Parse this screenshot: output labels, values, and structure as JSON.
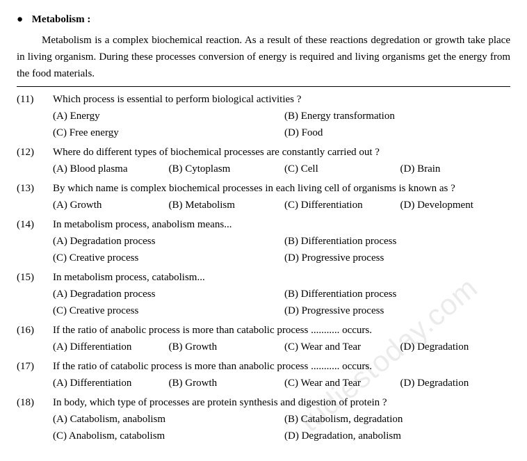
{
  "header": {
    "bullet": "●",
    "title": "Metabolism  :"
  },
  "intro": "Metabolism is a complex biochemical reaction. As a result of these reactions degredation or growth take place in living organism. During these processes conversion of energy is required and living organisms get the energy from the food materials.",
  "watermark": "tudiestoday.com",
  "questions": [
    {
      "num": "(11)",
      "text": "Which process is essential to perform biological activities ?",
      "layout": "2col",
      "opts": {
        "A": "(A) Energy",
        "B": "(B) Energy transformation",
        "C": "(C) Free energy",
        "D": "(D) Food"
      }
    },
    {
      "num": "(12)",
      "text": "Where do different types of biochemical processes are constantly carried out ?",
      "layout": "4col",
      "opts": {
        "A": "(A) Blood plasma",
        "B": "(B) Cytoplasm",
        "C": "(C) Cell",
        "D": "(D) Brain"
      }
    },
    {
      "num": "(13)",
      "text": "By which name is complex biochemical processes in each living cell of organisms is known as ?",
      "layout": "4col",
      "opts": {
        "A": "(A) Growth",
        "B": "(B) Metabolism",
        "C": "(C) Differentiation",
        "D": "(D) Development"
      }
    },
    {
      "num": "(14)",
      "text": "In metabolism process, anabolism means...",
      "layout": "2col",
      "opts": {
        "A": "(A) Degradation process",
        "B": "(B) Differentiation process",
        "C": "(C) Creative process",
        "D": "(D) Progressive process"
      }
    },
    {
      "num": "(15)",
      "text": "In metabolism process, catabolism...",
      "layout": "2col",
      "opts": {
        "A": "(A) Degradation process",
        "B": "(B) Differentiation process",
        "C": "(C) Creative process",
        "D": "(D) Progressive process"
      }
    },
    {
      "num": "(16)",
      "text": "If the ratio of anabolic process is more than catabolic process ........... occurs.",
      "layout": "4col",
      "opts": {
        "A": "(A) Differentiation",
        "B": "(B) Growth",
        "C": "(C) Wear and Tear",
        "D": "(D) Degradation"
      }
    },
    {
      "num": "(17)",
      "text": "If the ratio of catabolic process is more than anabolic process ........... occurs.",
      "layout": "4col",
      "opts": {
        "A": "(A) Differentiation",
        "B": "(B) Growth",
        "C": "(C) Wear and Tear",
        "D": "(D) Degradation"
      }
    },
    {
      "num": "(18)",
      "text": "In body, which type of processes are protein synthesis and digestion of protein ?",
      "layout": "2col",
      "opts": {
        "A": "(A) Catabolism, anabolism",
        "B": "(B) Catabolism, degradation",
        "C": "(C) Anabolism, catabolism",
        "D": "(D) Degradation, anabolism"
      }
    }
  ]
}
